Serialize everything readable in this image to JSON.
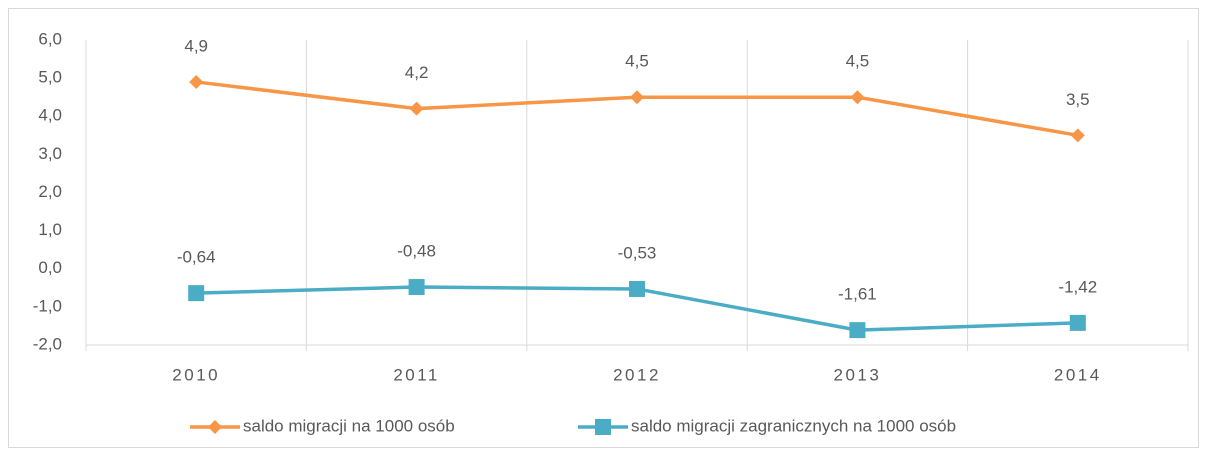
{
  "chart_data": {
    "type": "line",
    "categories": [
      "2010",
      "2011",
      "2012",
      "2013",
      "2014"
    ],
    "series": [
      {
        "name": "saldo migracji na 1000 osób",
        "color": "#f79646",
        "marker": "diamond",
        "values": [
          4.9,
          4.2,
          4.5,
          4.5,
          3.5
        ],
        "value_labels": [
          "4,9",
          "4,2",
          "4,5",
          "4,5",
          "3,5"
        ]
      },
      {
        "name": "saldo migracji zagranicznych na 1000 osób",
        "color": "#4bacc6",
        "marker": "square",
        "values": [
          -0.64,
          -0.48,
          -0.53,
          -1.61,
          -1.42
        ],
        "value_labels": [
          "-0,64",
          "-0,48",
          "-0,53",
          "-1,61",
          "-1,42"
        ]
      }
    ],
    "ylim": [
      -2,
      6
    ],
    "yticks": [
      {
        "value": -2,
        "label": "-2,0"
      },
      {
        "value": -1,
        "label": "-1,0"
      },
      {
        "value": 0,
        "label": "0,0"
      },
      {
        "value": 1,
        "label": "1,0"
      },
      {
        "value": 2,
        "label": "2,0"
      },
      {
        "value": 3,
        "label": "3,0"
      },
      {
        "value": 4,
        "label": "4,0"
      },
      {
        "value": 5,
        "label": "5,0"
      },
      {
        "value": 6,
        "label": "6,0"
      }
    ],
    "legend": "bottom"
  }
}
